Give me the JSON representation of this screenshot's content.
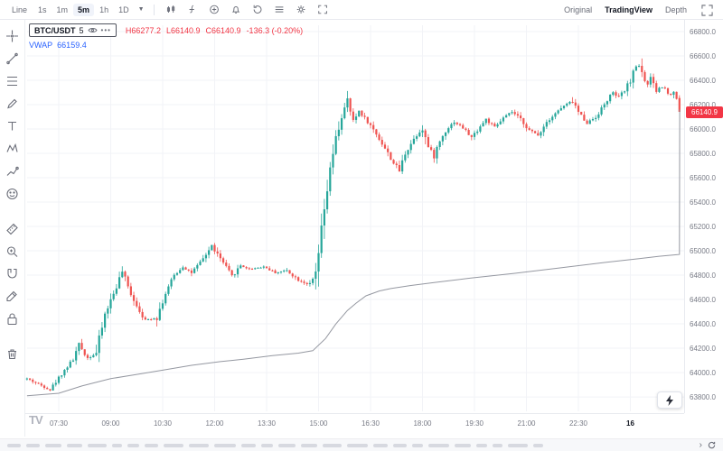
{
  "toolbar": {
    "chart_type_label": "Line",
    "timeframes": [
      "1s",
      "1m",
      "5m",
      "1h",
      "1D"
    ],
    "active_timeframe": "5m",
    "icon_names": [
      "candles-style",
      "indicators",
      "compare",
      "alert",
      "replay",
      "layout-lines",
      "settings",
      "fullscreen"
    ],
    "right_tabs": [
      "Original",
      "TradingView",
      "Depth"
    ],
    "active_right_tab": "TradingView"
  },
  "side_toolbar": {
    "items": [
      "crosshair",
      "trend-line",
      "fib-retracement",
      "brush",
      "text",
      "xabcd-pattern",
      "prediction",
      "emoji",
      "measure",
      "zoom-in",
      "magnet",
      "drawing-mode",
      "lock",
      "trash"
    ]
  },
  "legend": {
    "symbol": "BTC/USDT",
    "interval": "5",
    "high": "H66277.2",
    "low": "L66140.9",
    "close": "C66140.9",
    "change": "-136.3 (-0.20%)",
    "vwap_label": "VWAP",
    "vwap_value": "66159.4"
  },
  "price_badge": "66140.9",
  "colors": {
    "up": "#26a69a",
    "down": "#ef5350",
    "badge": "#f23645",
    "vwap_line": "#9598a1",
    "grid": "#f2f3f7",
    "axis_text": "#787b86"
  },
  "chart_data": {
    "type": "candlestick",
    "symbol": "BTC/USDT",
    "interval": "5m",
    "overlay": "VWAP",
    "legend_position": "top-left",
    "grid": true,
    "y_axis": {
      "min": 63682,
      "max": 66852,
      "tick_step": 200,
      "labels": [
        "66800.0",
        "66600.0",
        "66400.0",
        "66200.0",
        "66000.0",
        "65800.0",
        "65600.0",
        "65400.0",
        "65200.0",
        "65000.0",
        "64800.0",
        "64600.0",
        "64400.0",
        "64200.0",
        "64000.0",
        "63800.0"
      ]
    },
    "x_axis": {
      "labels": [
        "07:30",
        "09:00",
        "10:30",
        "12:00",
        "13:30",
        "15:00",
        "16:30",
        "18:00",
        "19:30",
        "21:00",
        "22:30",
        "16"
      ],
      "emphasized_label": "16",
      "minutes_per_tick": 90
    },
    "last_candle": {
      "o": 66255.0,
      "h": 66277.2,
      "l": 66140.9,
      "c": 66140.9
    },
    "last_close": 66140.9,
    "vwap_last": 66159.4,
    "price_anchors": [
      [
        -55,
        63950
      ],
      [
        -35,
        63905
      ],
      [
        -15,
        63860
      ],
      [
        5,
        63990
      ],
      [
        25,
        64110
      ],
      [
        35,
        64230
      ],
      [
        50,
        64120
      ],
      [
        65,
        64160
      ],
      [
        80,
        64480
      ],
      [
        95,
        64650
      ],
      [
        110,
        64830
      ],
      [
        120,
        64700
      ],
      [
        135,
        64550
      ],
      [
        150,
        64430
      ],
      [
        170,
        64455
      ],
      [
        185,
        64650
      ],
      [
        200,
        64800
      ],
      [
        215,
        64870
      ],
      [
        230,
        64820
      ],
      [
        245,
        64900
      ],
      [
        265,
        65040
      ],
      [
        285,
        64900
      ],
      [
        300,
        64790
      ],
      [
        315,
        64880
      ],
      [
        330,
        64850
      ],
      [
        355,
        64870
      ],
      [
        375,
        64820
      ],
      [
        395,
        64840
      ],
      [
        415,
        64760
      ],
      [
        435,
        64720
      ],
      [
        445,
        64800
      ],
      [
        455,
        65150
      ],
      [
        465,
        65500
      ],
      [
        478,
        65880
      ],
      [
        490,
        66100
      ],
      [
        500,
        66230
      ],
      [
        510,
        66060
      ],
      [
        520,
        66150
      ],
      [
        535,
        66060
      ],
      [
        550,
        65960
      ],
      [
        565,
        65840
      ],
      [
        580,
        65720
      ],
      [
        590,
        65660
      ],
      [
        600,
        65800
      ],
      [
        615,
        65920
      ],
      [
        630,
        66010
      ],
      [
        640,
        65850
      ],
      [
        650,
        65780
      ],
      [
        660,
        65900
      ],
      [
        672,
        66000
      ],
      [
        685,
        66060
      ],
      [
        700,
        66010
      ],
      [
        715,
        65930
      ],
      [
        728,
        66010
      ],
      [
        740,
        66080
      ],
      [
        755,
        66010
      ],
      [
        770,
        66090
      ],
      [
        785,
        66140
      ],
      [
        800,
        66080
      ],
      [
        815,
        65990
      ],
      [
        830,
        65950
      ],
      [
        845,
        66060
      ],
      [
        860,
        66130
      ],
      [
        875,
        66190
      ],
      [
        890,
        66230
      ],
      [
        900,
        66140
      ],
      [
        915,
        66050
      ],
      [
        930,
        66100
      ],
      [
        945,
        66200
      ],
      [
        958,
        66300
      ],
      [
        970,
        66260
      ],
      [
        982,
        66330
      ],
      [
        992,
        66420
      ],
      [
        1002,
        66541
      ],
      [
        1010,
        66480
      ],
      [
        1018,
        66350
      ],
      [
        1026,
        66420
      ],
      [
        1034,
        66300
      ],
      [
        1042,
        66350
      ],
      [
        1050,
        66330
      ],
      [
        1058,
        66280
      ],
      [
        1066,
        66300
      ],
      [
        1070,
        66250
      ]
    ],
    "vwap_anchors": [
      [
        -55,
        63810
      ],
      [
        0,
        63830
      ],
      [
        40,
        63890
      ],
      [
        90,
        63950
      ],
      [
        135,
        63985
      ],
      [
        180,
        64020
      ],
      [
        230,
        64060
      ],
      [
        280,
        64090
      ],
      [
        320,
        64110
      ],
      [
        370,
        64140
      ],
      [
        415,
        64160
      ],
      [
        440,
        64180
      ],
      [
        462,
        64280
      ],
      [
        480,
        64400
      ],
      [
        500,
        64510
      ],
      [
        515,
        64570
      ],
      [
        532,
        64630
      ],
      [
        555,
        64670
      ],
      [
        575,
        64690
      ],
      [
        610,
        64715
      ],
      [
        650,
        64740
      ],
      [
        712,
        64775
      ],
      [
        790,
        64815
      ],
      [
        868,
        64860
      ],
      [
        947,
        64905
      ],
      [
        1005,
        64935
      ],
      [
        1040,
        64955
      ],
      [
        1070,
        64968
      ],
      [
        1075,
        64970
      ],
      [
        1075.5,
        66159.4
      ]
    ]
  }
}
